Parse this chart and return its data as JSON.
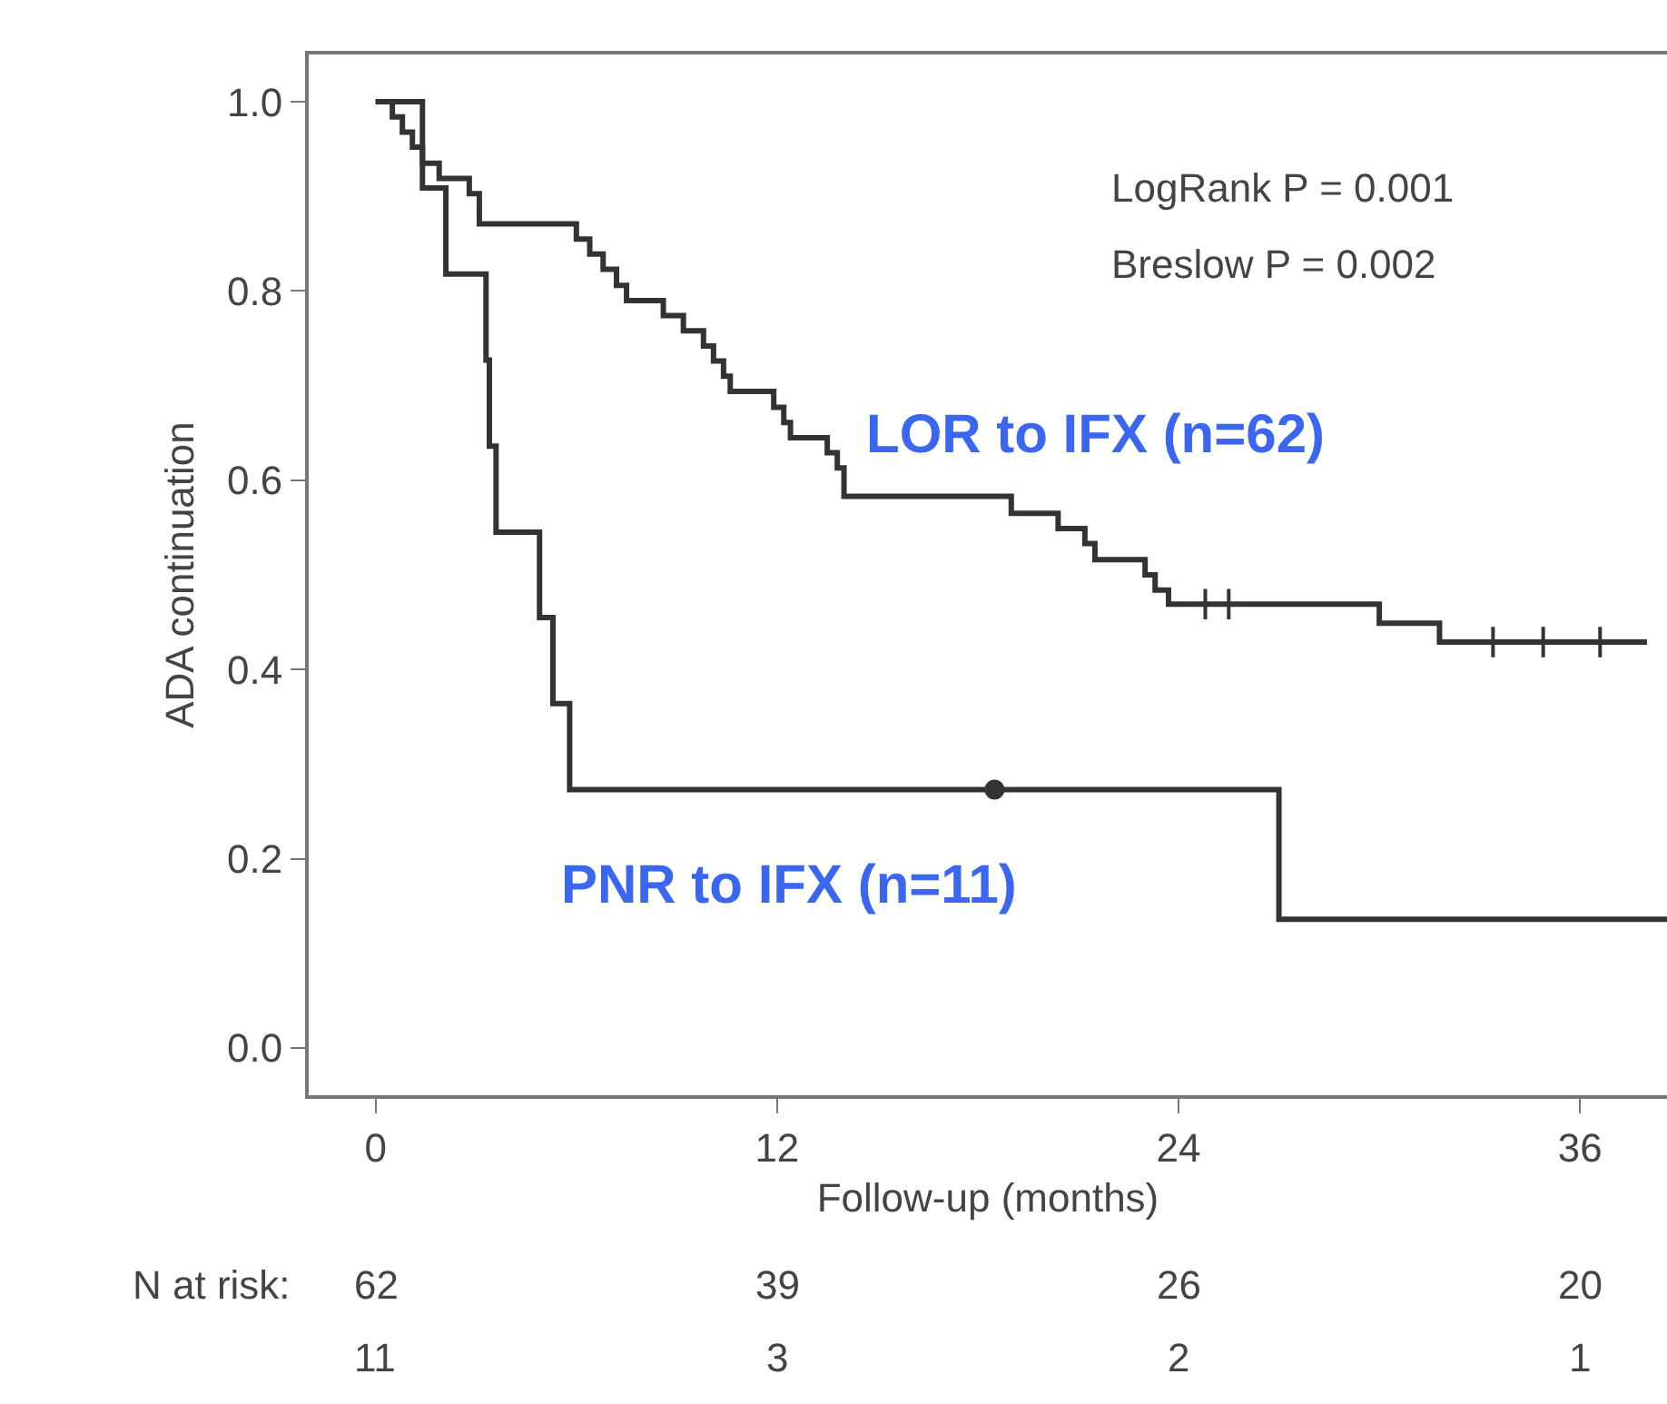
{
  "chart_data": {
    "type": "step",
    "xlabel": "Follow-up (months)",
    "ylabel": "ADA continuation",
    "xlim": [
      -2,
      38.6
    ],
    "ylim": [
      -0.05,
      1.05
    ],
    "xticks": [
      0,
      12,
      24,
      36
    ],
    "yticks": [
      {
        "value": 0,
        "label": "0.0"
      },
      {
        "value": 0.2,
        "label": "0.2"
      },
      {
        "value": 0.4,
        "label": "0.4"
      },
      {
        "value": 0.6,
        "label": "0.6"
      },
      {
        "value": 0.8,
        "label": "0.8"
      },
      {
        "value": 1,
        "label": "1.0"
      }
    ],
    "grid": false,
    "legend": false,
    "line_style": "solid",
    "series": [
      {
        "name": "LOR to IFX (n=62)",
        "color": "#333333",
        "x": [
          0,
          0.5,
          0.8,
          1.1,
          1.4,
          1.9,
          2.8,
          3.1,
          6.0,
          6.4,
          6.8,
          7.2,
          7.5,
          8.6,
          9.2,
          9.8,
          10.1,
          10.4,
          10.6,
          11.9,
          12.2,
          12.4,
          13.5,
          13.8,
          14.0,
          19.0,
          20.4,
          21.2,
          21.5,
          23.0,
          23.3,
          23.7,
          30.0,
          31.8,
          38.0
        ],
        "values": [
          1,
          0.984,
          0.968,
          0.952,
          0.935,
          0.919,
          0.903,
          0.871,
          0.855,
          0.839,
          0.823,
          0.806,
          0.79,
          0.774,
          0.758,
          0.742,
          0.726,
          0.71,
          0.694,
          0.677,
          0.661,
          0.645,
          0.629,
          0.613,
          0.583,
          0.565,
          0.549,
          0.533,
          0.516,
          0.5,
          0.484,
          0.469,
          0.449,
          0.429,
          0.429
        ]
      },
      {
        "name": "PNR to IFX (n=11)",
        "color": "#333333",
        "x": [
          0,
          1.4,
          2.1,
          3.3,
          3.4,
          3.6,
          4.9,
          5.3,
          5.8,
          27.0,
          38.6
        ],
        "values": [
          1,
          0.909,
          0.818,
          0.727,
          0.636,
          0.545,
          0.455,
          0.364,
          0.273,
          0.136,
          0.136
        ]
      },
      {
        "type": "scatter",
        "marker": "cross",
        "color": "#333333",
        "x": [
          24.8,
          25.5,
          33.4,
          34.9,
          36.6
        ],
        "values": [
          0.469,
          0.469,
          0.429,
          0.429,
          0.429
        ]
      },
      {
        "type": "scatter",
        "marker": "circle",
        "color": "#333333",
        "x": [
          18.5
        ],
        "values": [
          0.273
        ]
      }
    ],
    "annotations": [
      "LogRank P = 0.001",
      "Breslow P = 0.002",
      "N at risk:",
      "62",
      "39",
      "26",
      "20",
      "11",
      "3",
      "2",
      "1"
    ]
  }
}
